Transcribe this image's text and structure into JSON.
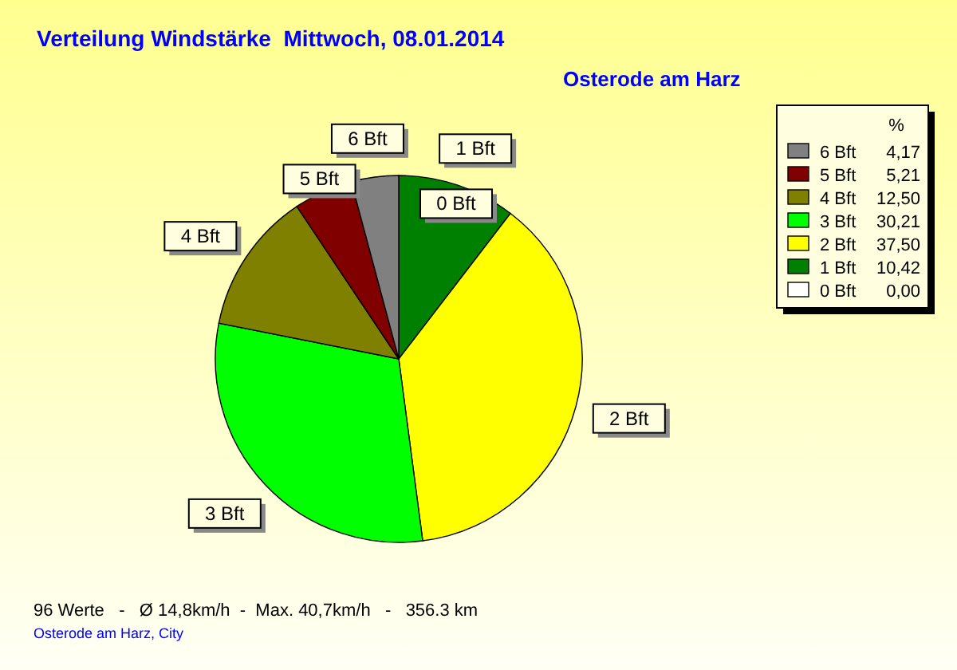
{
  "chart_data": {
    "type": "pie",
    "title": "Verteilung Windstärke  Mittwoch, 08.01.2014",
    "subtitle": "Osterode am Harz",
    "categories": [
      "0 Bft",
      "1 Bft",
      "2 Bft",
      "3 Bft",
      "4 Bft",
      "5 Bft",
      "6 Bft"
    ],
    "values": [
      0,
      10.42,
      37.5,
      30.21,
      12.5,
      5.21,
      4.17
    ],
    "value_labels": [
      "0,00",
      "10,42",
      "37,50",
      "30,21",
      "12,50",
      "5,21",
      "4,17"
    ],
    "colors": [
      "#ffffff",
      "#008000",
      "#ffff00",
      "#00ff00",
      "#808000",
      "#800000",
      "#808080"
    ],
    "legend": "top right",
    "legend_title": "%",
    "annotations": [
      "96 Werte   -   Ø 14,8km/h  -  Max. 40,7km/h   -   356.3 km",
      "Osterode am Harz, City"
    ]
  }
}
